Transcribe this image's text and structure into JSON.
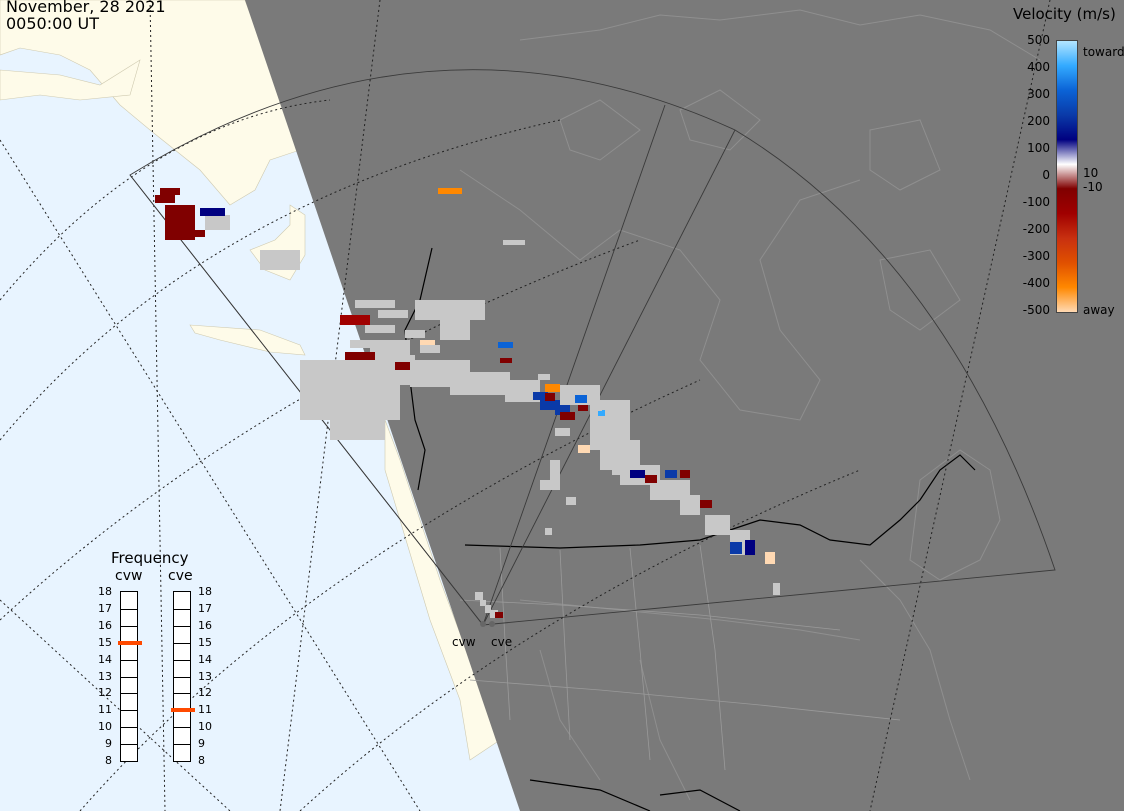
{
  "header": {
    "date": "November, 28 2021",
    "time": "0050:00 UT"
  },
  "colorbar": {
    "title": "Velocity (m/s)",
    "ticks": [
      "500",
      "400",
      "300",
      "200",
      "100",
      "10",
      "0",
      "-10",
      "-100",
      "-200",
      "-300",
      "-400",
      "-500"
    ],
    "toward_label": "toward",
    "away_label": "away",
    "colors": [
      "#b3e5ff",
      "#33aaff",
      "#0b63d6",
      "#0a3aa8",
      "#000080",
      "#ffffff",
      "#800000",
      "#a00000",
      "#c83010",
      "#e05000",
      "#ff8800",
      "#ffd9b3"
    ]
  },
  "frequency": {
    "title": "Frequency",
    "radars": [
      "cvw",
      "cve"
    ],
    "scale": [
      "18",
      "17",
      "16",
      "15",
      "14",
      "13",
      "12",
      "11",
      "10",
      "9",
      "8"
    ],
    "values_mhz": {
      "cvw": 15,
      "cve": 11
    },
    "marker_color": "#ff4a00"
  },
  "sites": [
    "cvw",
    "cve"
  ],
  "map_colors": {
    "ocean": "#e8f4ff",
    "land": "#fefbe9",
    "night": "#7a7a7a",
    "ground_scatter": "#c8c8c8"
  },
  "velocity_data_ms": [
    -30,
    -40,
    -60,
    40,
    -50,
    -80,
    0,
    0,
    0,
    0,
    -420,
    0,
    -30,
    0,
    -500,
    -30,
    150,
    -60,
    0,
    -400,
    80,
    120,
    90,
    -30,
    350,
    200,
    -40,
    -30,
    0,
    0,
    -500,
    0,
    60,
    -60,
    80,
    0,
    -40,
    90,
    -30,
    60,
    -500,
    0,
    0,
    0,
    0,
    0,
    -30,
    0,
    0,
    0
  ]
}
